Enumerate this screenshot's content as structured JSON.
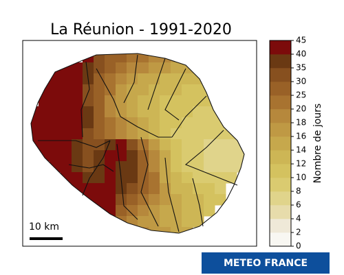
{
  "title": "La Réunion - 1991-2020",
  "map": {
    "scale_bar": "10 km",
    "grid": [
      [
        null,
        null,
        null,
        null,
        null,
        42,
        32,
        27,
        27,
        22,
        22,
        19,
        19,
        17,
        null,
        null,
        null,
        null,
        null,
        null
      ],
      [
        null,
        null,
        42,
        42,
        42,
        37,
        32,
        27,
        22,
        19,
        19,
        17,
        17,
        15,
        15,
        15,
        null,
        null,
        null,
        null
      ],
      [
        null,
        42,
        42,
        42,
        42,
        37,
        27,
        22,
        19,
        17,
        15,
        15,
        13,
        13,
        13,
        13,
        null,
        null,
        null,
        null
      ],
      [
        null,
        42,
        42,
        42,
        42,
        32,
        27,
        22,
        17,
        15,
        15,
        13,
        13,
        13,
        11,
        11,
        11,
        null,
        null,
        null
      ],
      [
        null,
        42,
        42,
        42,
        42,
        32,
        27,
        19,
        17,
        15,
        13,
        13,
        11,
        11,
        11,
        11,
        11,
        9,
        null,
        null
      ],
      [
        42,
        42,
        42,
        42,
        42,
        37,
        27,
        19,
        17,
        15,
        13,
        13,
        11,
        11,
        11,
        9,
        9,
        9,
        null,
        null
      ],
      [
        42,
        42,
        42,
        42,
        42,
        37,
        27,
        22,
        19,
        17,
        15,
        13,
        11,
        11,
        9,
        9,
        9,
        9,
        9,
        null
      ],
      [
        42,
        42,
        42,
        42,
        42,
        32,
        27,
        22,
        19,
        17,
        15,
        13,
        11,
        9,
        9,
        9,
        9,
        9,
        9,
        null
      ],
      [
        42,
        42,
        42,
        42,
        37,
        32,
        32,
        37,
        42,
        32,
        22,
        17,
        13,
        11,
        9,
        9,
        7,
        7,
        7,
        7
      ],
      [
        null,
        42,
        42,
        42,
        37,
        32,
        37,
        42,
        42,
        37,
        27,
        19,
        15,
        11,
        9,
        9,
        7,
        7,
        7,
        7
      ],
      [
        null,
        null,
        42,
        42,
        37,
        32,
        37,
        42,
        37,
        37,
        27,
        19,
        15,
        11,
        9,
        9,
        7,
        7,
        7,
        7
      ],
      [
        null,
        null,
        null,
        42,
        42,
        37,
        37,
        42,
        37,
        37,
        27,
        22,
        15,
        13,
        11,
        9,
        9,
        9,
        9,
        null
      ],
      [
        null,
        null,
        null,
        42,
        42,
        42,
        42,
        42,
        37,
        32,
        27,
        22,
        17,
        13,
        13,
        11,
        11,
        9,
        null,
        null
      ],
      [
        null,
        null,
        null,
        null,
        null,
        42,
        42,
        42,
        32,
        27,
        22,
        19,
        17,
        15,
        13,
        13,
        11,
        11,
        null,
        null
      ],
      [
        null,
        null,
        null,
        null,
        null,
        null,
        42,
        42,
        27,
        22,
        19,
        17,
        15,
        15,
        13,
        13,
        11,
        null,
        null,
        null
      ],
      [
        null,
        null,
        null,
        null,
        null,
        null,
        null,
        null,
        22,
        19,
        17,
        17,
        15,
        15,
        13,
        13,
        null,
        null,
        null,
        null
      ],
      [
        null,
        null,
        null,
        null,
        null,
        null,
        null,
        null,
        null,
        null,
        19,
        17,
        17,
        15,
        15,
        null,
        null,
        null,
        null,
        null
      ]
    ]
  },
  "colorbar": {
    "label": "Nombre de jours",
    "ticks": [
      0,
      2,
      4,
      6,
      8,
      10,
      12,
      14,
      16,
      18,
      20,
      25,
      30,
      35,
      40,
      45
    ],
    "colors": [
      "#f8f7f2",
      "#efe9d8",
      "#e7dcab",
      "#e0d48b",
      "#dacb70",
      "#d4c25f",
      "#cdb655",
      "#c6a84c",
      "#bf9944",
      "#b6883c",
      "#a87330",
      "#996127",
      "#87501f",
      "#6a3913",
      "#7c0b0b"
    ]
  },
  "logo": "METEO FRANCE"
}
